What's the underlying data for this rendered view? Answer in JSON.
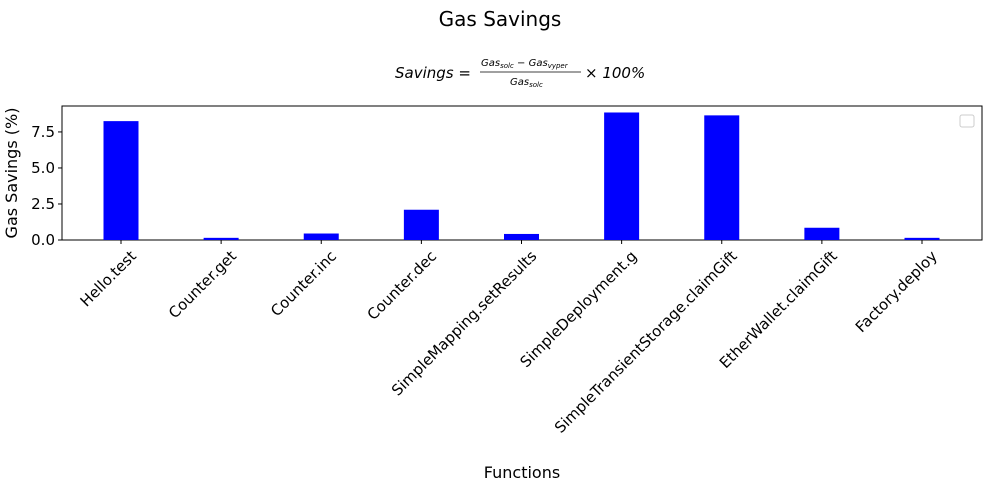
{
  "chart_data": {
    "type": "bar",
    "title": "Gas Savings",
    "subtitle": {
      "lhs": "Savings",
      "numerator": "Gas_solc − Gas_vyper",
      "numerator_a": "Gas",
      "numerator_a_sub": "solc",
      "numerator_op": "−",
      "numerator_b": "Gas",
      "numerator_b_sub": "vyper",
      "denominator": "Gas",
      "denominator_sub": "solc",
      "factor": "× 100%"
    },
    "xlabel": "Functions",
    "ylabel": "Gas Savings (%)",
    "ylim": [
      0,
      9.3
    ],
    "yticks": [
      "0.0",
      "2.5",
      "5.0",
      "7.5"
    ],
    "ytick_values": [
      0,
      2.5,
      5.0,
      7.5
    ],
    "categories": [
      "Hello.test",
      "Counter.get",
      "Counter.inc",
      "Counter.dec",
      "SimpleMapping.setResults",
      "SimpleDeployment.g",
      "SimpleTransientStorage.claimGift",
      "EtherWallet.claimGift",
      "Factory.deploy"
    ],
    "values": [
      8.25,
      0.15,
      0.45,
      2.1,
      0.42,
      8.85,
      8.65,
      0.85,
      0.15
    ],
    "bar_color": "#0000ff",
    "legend": "top-right (empty)",
    "grid": false
  }
}
